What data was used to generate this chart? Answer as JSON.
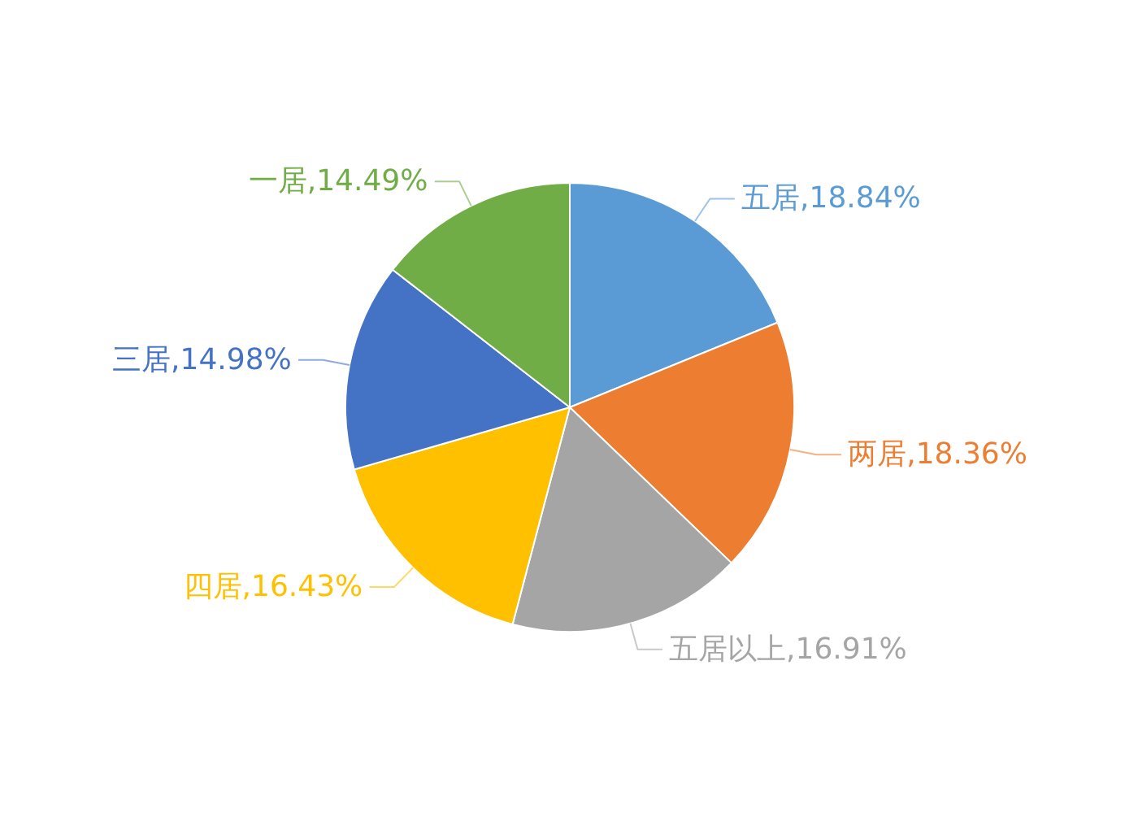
{
  "chart_data": {
    "type": "pie",
    "categories": [
      "五居",
      "两居",
      "五居以上",
      "四居",
      "三居",
      "一居"
    ],
    "values": [
      18.84,
      18.36,
      16.91,
      16.43,
      14.98,
      14.49
    ],
    "colors": [
      "#5b9bd5",
      "#ed7d31",
      "#a5a5a5",
      "#ffc000",
      "#4472c4",
      "#70ad47"
    ],
    "value_labels": [
      "18.84%",
      "18.36%",
      "16.91%",
      "16.43%",
      "14.98%",
      "14.49%"
    ]
  }
}
